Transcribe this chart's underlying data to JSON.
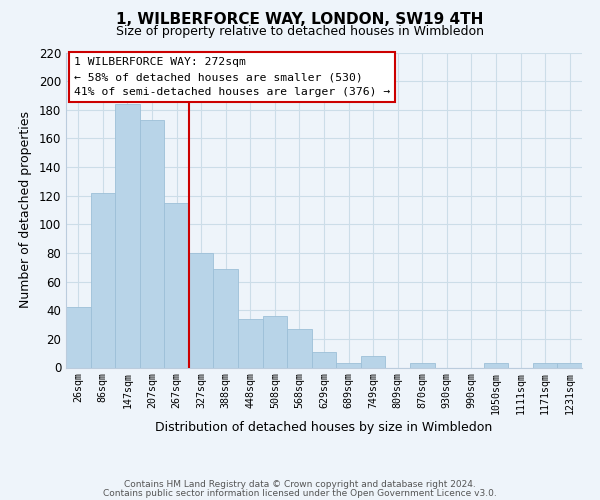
{
  "title": "1, WILBERFORCE WAY, LONDON, SW19 4TH",
  "subtitle": "Size of property relative to detached houses in Wimbledon",
  "xlabel": "Distribution of detached houses by size in Wimbledon",
  "ylabel": "Number of detached properties",
  "categories": [
    "26sqm",
    "86sqm",
    "147sqm",
    "207sqm",
    "267sqm",
    "327sqm",
    "388sqm",
    "448sqm",
    "508sqm",
    "568sqm",
    "629sqm",
    "689sqm",
    "749sqm",
    "809sqm",
    "870sqm",
    "930sqm",
    "990sqm",
    "1050sqm",
    "1111sqm",
    "1171sqm",
    "1231sqm"
  ],
  "values": [
    42,
    122,
    184,
    173,
    115,
    80,
    69,
    34,
    36,
    27,
    11,
    3,
    8,
    0,
    3,
    0,
    0,
    3,
    0,
    3,
    3
  ],
  "bar_color": "#b8d4e8",
  "bar_edge_color": "#9dc0d8",
  "vline_x_index": 4,
  "vline_color": "#cc0000",
  "ylim": [
    0,
    220
  ],
  "yticks": [
    0,
    20,
    40,
    60,
    80,
    100,
    120,
    140,
    160,
    180,
    200,
    220
  ],
  "annotation_title": "1 WILBERFORCE WAY: 272sqm",
  "annotation_line1": "← 58% of detached houses are smaller (530)",
  "annotation_line2": "41% of semi-detached houses are larger (376) →",
  "annotation_box_facecolor": "#ffffff",
  "annotation_box_edgecolor": "#cc0000",
  "footer1": "Contains HM Land Registry data © Crown copyright and database right 2024.",
  "footer2": "Contains public sector information licensed under the Open Government Licence v3.0.",
  "grid_color": "#ccdde8",
  "background_color": "#eef4fa",
  "title_fontsize": 11,
  "subtitle_fontsize": 9
}
